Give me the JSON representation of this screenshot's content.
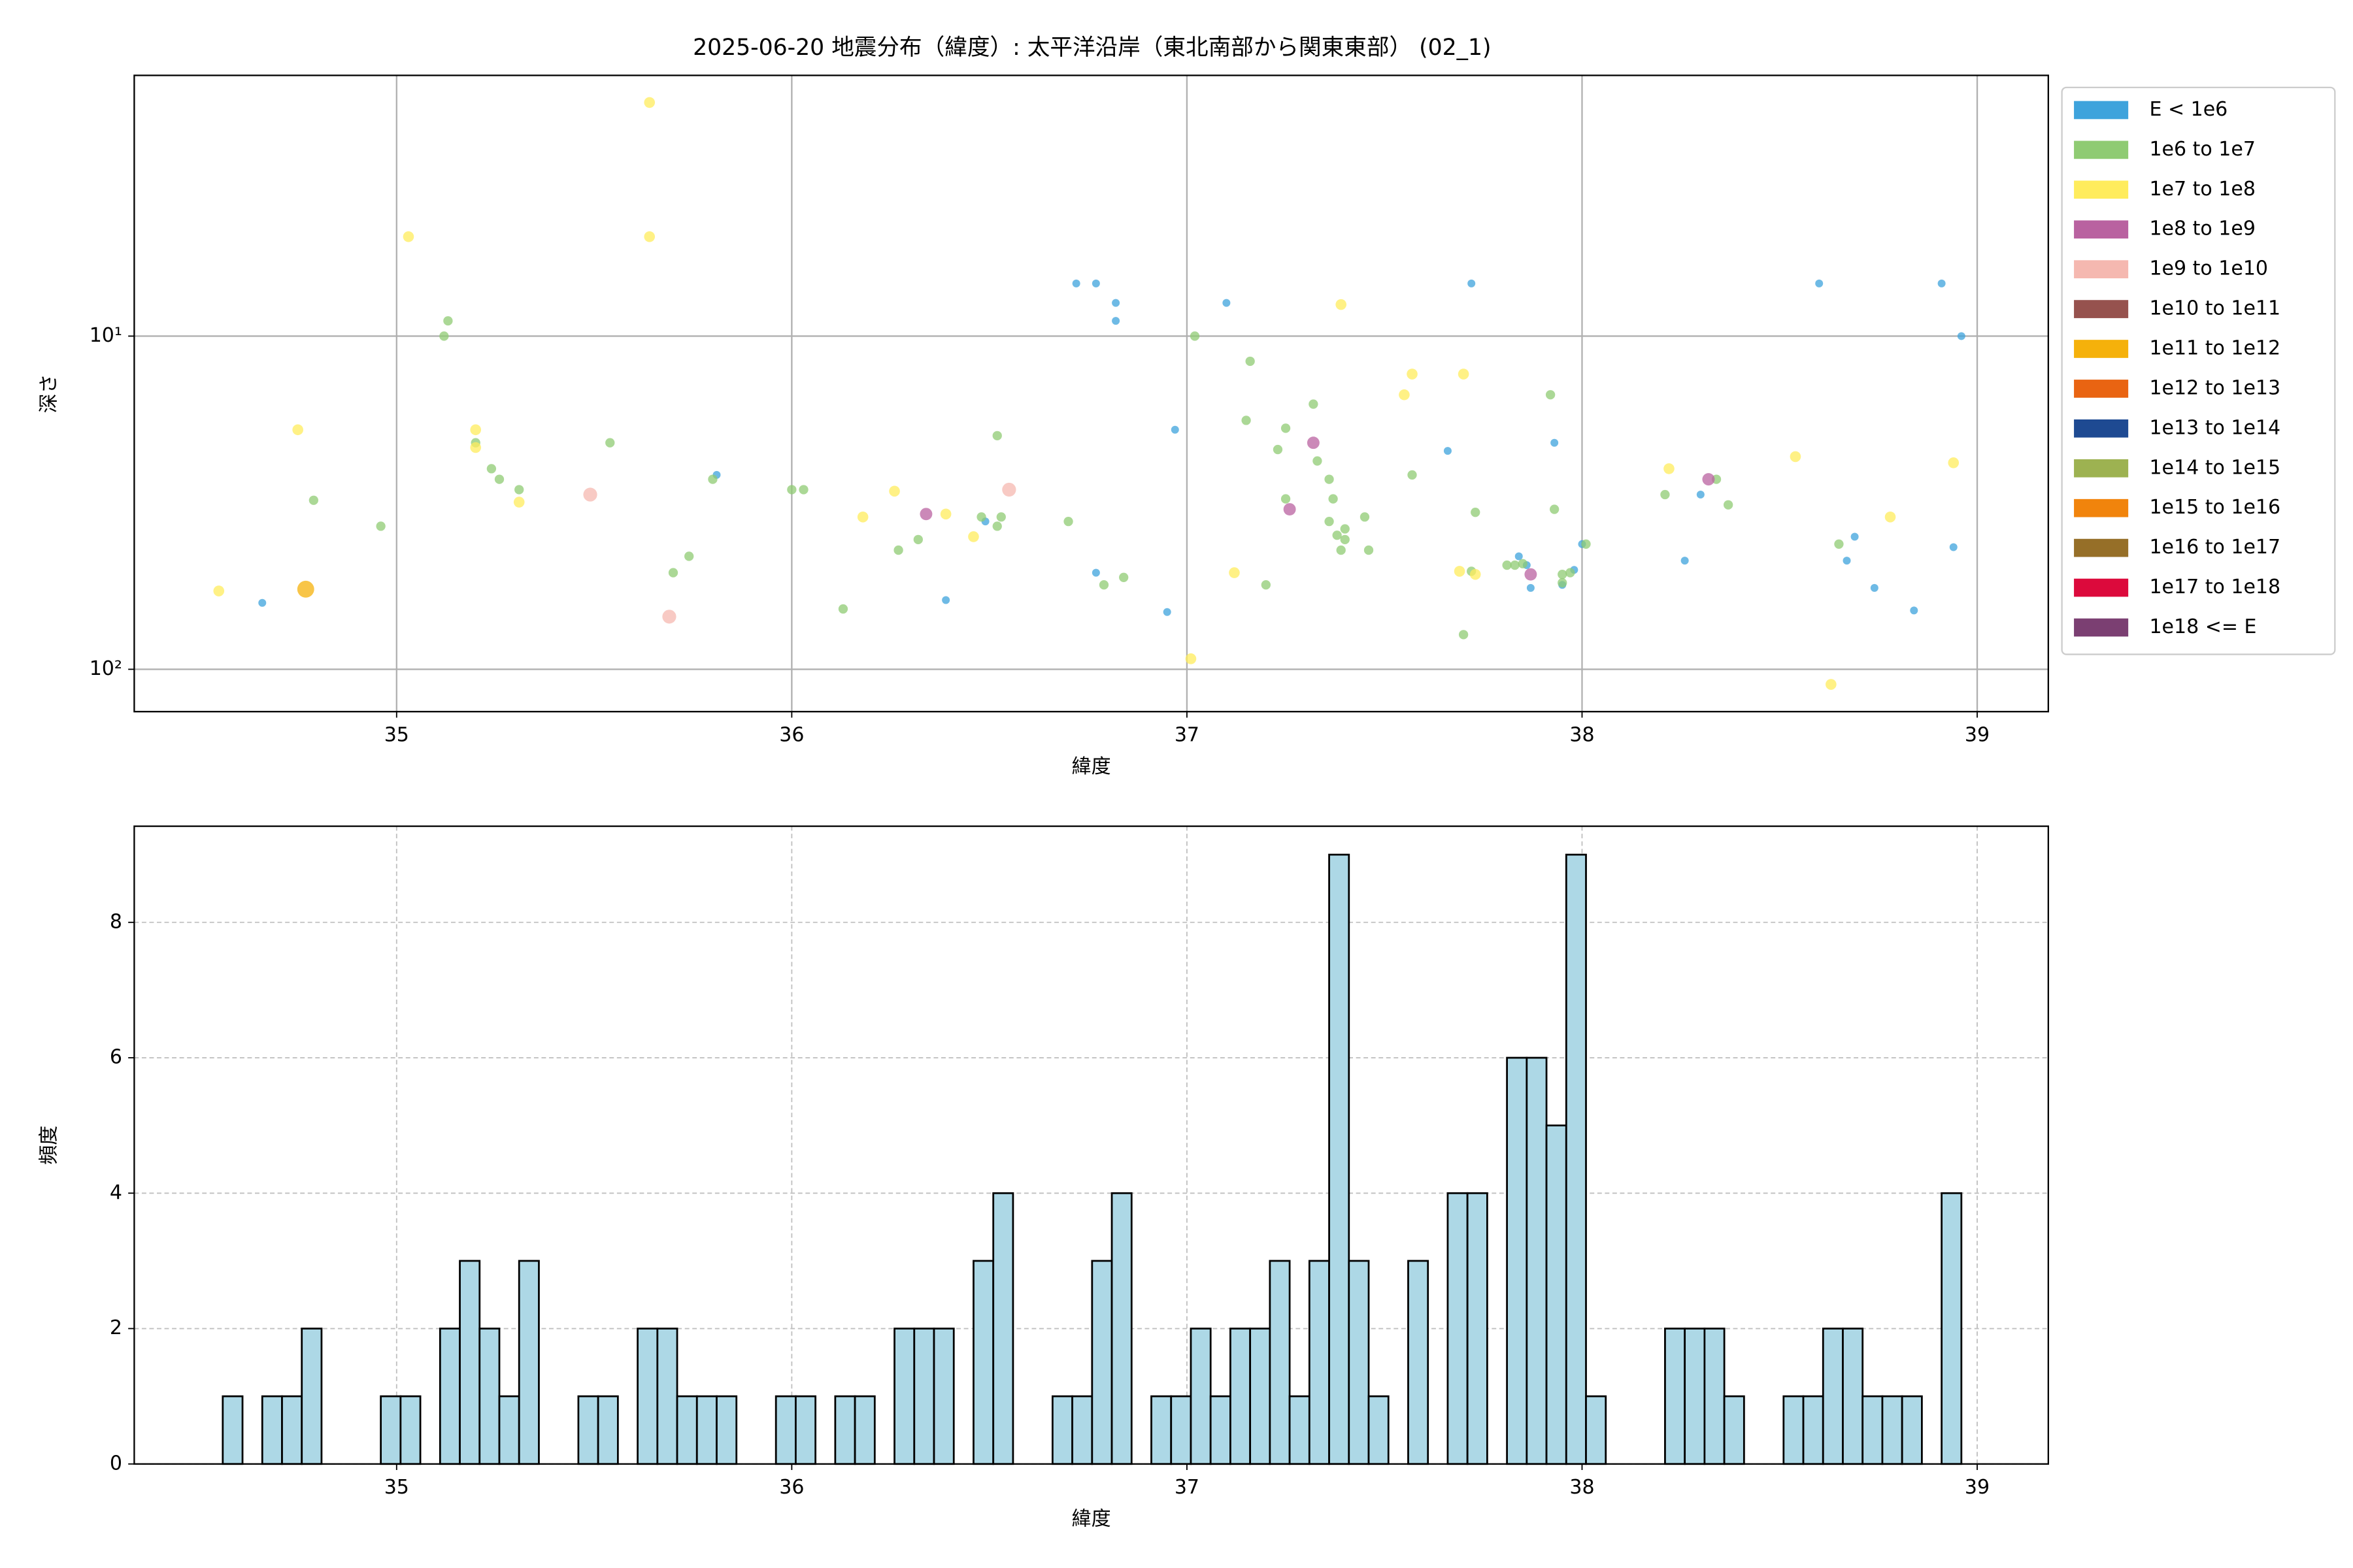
{
  "chart_data": [
    {
      "type": "scatter",
      "title": "2025-06-20 地震分布（緯度）: 太平洋沿岸（東北南部から関東東部） (02_1)",
      "xlabel": "緯度",
      "ylabel": "深さ",
      "xlim": [
        34.336,
        39.18
      ],
      "ylim": [
        1.65,
        134
      ],
      "y_log": true,
      "y_inverted": true,
      "xticks": [
        35,
        36,
        37,
        38,
        39
      ],
      "yticks": [
        {
          "value": 10,
          "label": "10¹"
        },
        {
          "value": 100,
          "label": "10²"
        }
      ],
      "grid": true,
      "legend": "outside right",
      "series": [
        {
          "name": "E < 1e6",
          "color": "#3ea3dc",
          "x": [
            34.66,
            36.39,
            36.49,
            35.81,
            36.72,
            36.77,
            36.82,
            36.82,
            36.77,
            36.95,
            36.97,
            37.1,
            37.66,
            37.72,
            37.93,
            37.84,
            37.86,
            37.87,
            37.95,
            37.98,
            38.0,
            38.26,
            38.3,
            38.6,
            38.67,
            38.69,
            38.74,
            38.84,
            38.91,
            38.94,
            38.96
          ],
          "values": [
            63.2,
            62,
            36.0,
            26.1,
            6.95,
            6.95,
            7.95,
            9.0,
            51.3,
            67.3,
            19.1,
            7.95,
            22.1,
            6.95,
            20.9,
            45.8,
            48.7,
            57,
            55.8,
            50.3,
            42.1,
            47.2,
            29.9,
            6.95,
            47.2,
            40,
            57,
            66.6,
            6.95,
            43,
            10.0
          ]
        },
        {
          "name": "1e6 to 1e7",
          "color": "#8fcb73",
          "x": [
            34.96,
            34.79,
            35.12,
            35.13,
            35.2,
            35.24,
            35.26,
            35.31,
            35.54,
            35.7,
            35.74,
            35.8,
            36.0,
            36.03,
            36.13,
            36.27,
            36.32,
            36.48,
            36.52,
            36.53,
            36.52,
            36.7,
            36.79,
            36.84,
            37.02,
            37.16,
            37.15,
            37.2,
            37.23,
            37.25,
            37.25,
            37.32,
            37.33,
            37.36,
            37.37,
            37.36,
            37.38,
            37.4,
            37.39,
            37.4,
            37.45,
            37.46,
            37.57,
            37.7,
            37.72,
            37.73,
            37.81,
            37.83,
            37.85,
            37.92,
            37.93,
            37.95,
            37.97,
            37.95,
            38.01,
            38.21,
            38.34,
            38.37,
            38.65
          ],
          "values": [
            37.2,
            31.1,
            10.0,
            9.0,
            20.9,
            25,
            26.9,
            28.9,
            20.9,
            51.3,
            45.8,
            26.9,
            28.9,
            28.9,
            65.9,
            43.9,
            40.8,
            34.9,
            37.2,
            34.9,
            19.9,
            36.0,
            55.8,
            53,
            10,
            11.9,
            17.9,
            55.8,
            21.9,
            18.9,
            30.8,
            16,
            23.7,
            26.9,
            30.8,
            36,
            39.6,
            37.9,
            43.9,
            40.8,
            34.9,
            43.9,
            26.1,
            78.7,
            50.8,
            33.8,
            48.7,
            48.7,
            48.2,
            15,
            33.1,
            51.9,
            51.3,
            55,
            42.1,
            29.9,
            26.9,
            32.1,
            42.1
          ]
        },
        {
          "name": "1e7 to 1e8",
          "color": "#ffec5c",
          "x": [
            34.55,
            34.75,
            35.03,
            35.64,
            35.64,
            35.2,
            35.2,
            35.31,
            36.18,
            36.26,
            36.39,
            36.46,
            37.01,
            37.12,
            37.39,
            37.55,
            37.57,
            37.7,
            37.69,
            37.73,
            38.22,
            38.54,
            38.63,
            38.78,
            38.94
          ],
          "values": [
            58.2,
            19.1,
            5.03,
            1.99,
            5.03,
            19.1,
            21.6,
            31.5,
            34.9,
            29.2,
            34.2,
            40,
            93,
            51.3,
            8.04,
            15,
            13,
            13,
            50.8,
            51.9,
            25,
            23,
            111,
            34.9,
            24
          ]
        },
        {
          "name": "1e8 to 1e9",
          "color": "#b962a0",
          "x": [
            36.34,
            37.32,
            37.26,
            38.32,
            37.87
          ],
          "values": [
            34.2,
            20.9,
            33.1,
            26.9,
            51.9
          ]
        },
        {
          "name": "1e9 to 1e10",
          "color": "#f5b8b0",
          "x": [
            35.49,
            35.69,
            36.55
          ],
          "values": [
            29.9,
            69.5,
            28.9
          ]
        },
        {
          "name": "1e10 to 1e11",
          "color": "#96524e",
          "x": [],
          "values": []
        },
        {
          "name": "1e11 to 1e12",
          "color": "#f5b10b",
          "x": [
            34.77
          ],
          "values": [
            57.5
          ]
        },
        {
          "name": "1e12 to 1e13",
          "color": "#e96412",
          "x": [],
          "values": []
        },
        {
          "name": "1e13 to 1e14",
          "color": "#1e4a92",
          "x": [],
          "values": []
        },
        {
          "name": "1e14 to 1e15",
          "color": "#9db251",
          "x": [],
          "values": []
        },
        {
          "name": "1e15 to 1e16",
          "color": "#f1840c",
          "x": [],
          "values": []
        },
        {
          "name": "1e16 to 1e17",
          "color": "#966f28",
          "x": [],
          "values": []
        },
        {
          "name": "1e17 to 1e18",
          "color": "#dc0a3c",
          "x": [],
          "values": []
        },
        {
          "name": "1e18 <= E",
          "color": "#7b3f72",
          "x": [],
          "values": []
        }
      ]
    },
    {
      "type": "histogram",
      "xlabel": "緯度",
      "ylabel": "頻度",
      "xlim": [
        34.336,
        39.18
      ],
      "ylim": [
        0,
        9.42
      ],
      "xticks": [
        35,
        36,
        37,
        38,
        39
      ],
      "yticks": [
        0,
        2,
        4,
        6,
        8
      ],
      "grid": "dashed",
      "color": "#add8e6",
      "edgecolor": "#000000",
      "bins": [
        34.56,
        34.61,
        34.66,
        34.71,
        34.76,
        34.81,
        34.86,
        34.91,
        34.96,
        35.01,
        35.06,
        35.11,
        35.16,
        35.21,
        35.26,
        35.31,
        35.36,
        35.41,
        35.46,
        35.51,
        35.56,
        35.61,
        35.66,
        35.71,
        35.76,
        35.81,
        35.86,
        35.91,
        35.96,
        36.01,
        36.06,
        36.11,
        36.16,
        36.21,
        36.26,
        36.31,
        36.36,
        36.41,
        36.46,
        36.51,
        36.56,
        36.61,
        36.66,
        36.71,
        36.76,
        36.81,
        36.86,
        36.91,
        36.96,
        37.01,
        37.06,
        37.11,
        37.16,
        37.21,
        37.26,
        37.31,
        37.36,
        37.41,
        37.46,
        37.51,
        37.56,
        37.61,
        37.66,
        37.71,
        37.76,
        37.81,
        37.86,
        37.91,
        37.96,
        38.01,
        38.06,
        38.11,
        38.16,
        38.21,
        38.26,
        38.31,
        38.36,
        38.41,
        38.46,
        38.51,
        38.56,
        38.61,
        38.66,
        38.71,
        38.76,
        38.81,
        38.86,
        38.91,
        38.96
      ],
      "counts": [
        1,
        0,
        1,
        1,
        2,
        0,
        0,
        0,
        1,
        1,
        0,
        2,
        3,
        2,
        1,
        3,
        0,
        0,
        1,
        1,
        0,
        2,
        2,
        1,
        1,
        1,
        0,
        0,
        1,
        1,
        0,
        1,
        1,
        0,
        2,
        2,
        2,
        0,
        3,
        4,
        0,
        0,
        1,
        1,
        3,
        4,
        0,
        1,
        1,
        2,
        1,
        2,
        2,
        3,
        1,
        3,
        9,
        3,
        1,
        0,
        3,
        0,
        4,
        4,
        0,
        6,
        6,
        5,
        9,
        1,
        0,
        0,
        0,
        2,
        2,
        2,
        1,
        0,
        0,
        1,
        1,
        2,
        2,
        1,
        1,
        1,
        0,
        4
      ]
    }
  ]
}
